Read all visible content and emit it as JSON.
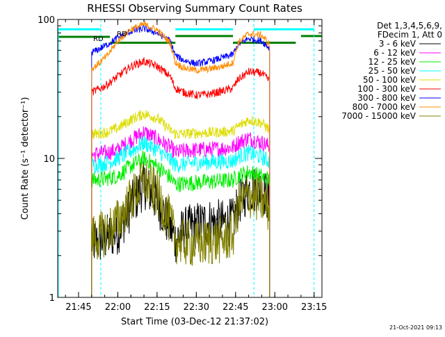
{
  "chart_data": {
    "type": "line",
    "title": "RHESSI Observing Summary Count Rates",
    "xlabel": "Start Time (03-Dec-12 21:37:02)",
    "ylabel": "Count Rate (s⁻¹ detector⁻¹)",
    "yscale": "log",
    "ylim": [
      1,
      100
    ],
    "xlim": [
      "21:37:02",
      "23:18:00"
    ],
    "x_ticks": [
      "21:45",
      "22:00",
      "22:15",
      "22:30",
      "22:45",
      "23:00",
      "23:15"
    ],
    "y_ticks": [
      "1",
      "10",
      "100"
    ],
    "legend_placement": "top-right",
    "legend_header": [
      "Det 1,3,4,5,6,9,",
      "FDecim 1, Att 0"
    ],
    "timestamp": "21-Oct-2021 09:13",
    "annotations": [
      "RD",
      "RD"
    ],
    "series": [
      {
        "name": "3 - 6 keV",
        "color": "#000000",
        "x": [
          "21:50:00",
          "21:52:00",
          "21:56:00",
          "22:00:00",
          "22:05:00",
          "22:10:00",
          "22:15:00",
          "22:20:00",
          "22:22:00",
          "22:25:00",
          "22:30:00",
          "22:35:00",
          "22:40:00",
          "22:44:00",
          "22:46:00",
          "22:50:00",
          "22:55:00",
          "22:58:00"
        ],
        "y": [
          2.5,
          2.5,
          2.7,
          3.0,
          4.5,
          6.5,
          5.0,
          3.2,
          2.6,
          3.0,
          3.3,
          3.5,
          3.4,
          3.5,
          4.8,
          6.0,
          6.0,
          5.0
        ]
      },
      {
        "name": "6 - 12 keV",
        "color": "#ff00ff",
        "x": [
          "21:50:00",
          "21:52:00",
          "21:56:00",
          "22:00:00",
          "22:05:00",
          "22:10:00",
          "22:15:00",
          "22:20:00",
          "22:22:00",
          "22:25:00",
          "22:30:00",
          "22:35:00",
          "22:40:00",
          "22:44:00",
          "22:46:00",
          "22:50:00",
          "22:55:00",
          "22:58:00"
        ],
        "y": [
          10.5,
          10.8,
          11.0,
          11.5,
          13.5,
          15.5,
          13.8,
          12.0,
          11.0,
          11.3,
          11.5,
          11.6,
          11.8,
          12.0,
          13.0,
          14.0,
          13.0,
          12.2
        ]
      },
      {
        "name": "12 - 25 keV",
        "color": "#00ee00",
        "x": [
          "21:50:00",
          "21:52:00",
          "21:56:00",
          "22:00:00",
          "22:05:00",
          "22:10:00",
          "22:15:00",
          "22:20:00",
          "22:22:00",
          "22:25:00",
          "22:30:00",
          "22:35:00",
          "22:40:00",
          "22:44:00",
          "22:46:00",
          "22:50:00",
          "22:55:00",
          "22:58:00"
        ],
        "y": [
          7.0,
          7.0,
          7.2,
          7.5,
          8.8,
          10.0,
          8.8,
          7.3,
          6.5,
          6.6,
          6.7,
          6.8,
          6.9,
          7.0,
          7.5,
          8.0,
          7.4,
          7.0
        ]
      },
      {
        "name": "25 - 50 keV",
        "color": "#00ffff",
        "x": [
          "21:50:00",
          "21:52:00",
          "21:56:00",
          "22:00:00",
          "22:05:00",
          "22:10:00",
          "22:15:00",
          "22:20:00",
          "22:22:00",
          "22:25:00",
          "22:30:00",
          "22:35:00",
          "22:40:00",
          "22:44:00",
          "22:46:00",
          "22:50:00",
          "22:55:00",
          "22:58:00"
        ],
        "y": [
          9.0,
          9.0,
          9.3,
          10.0,
          11.3,
          13.0,
          11.5,
          9.8,
          9.0,
          9.1,
          9.3,
          9.4,
          9.5,
          9.6,
          10.3,
          11.0,
          10.2,
          9.5
        ]
      },
      {
        "name": "50 - 100 keV",
        "color": "#dddd00",
        "x": [
          "21:50:00",
          "21:52:00",
          "21:56:00",
          "22:00:00",
          "22:05:00",
          "22:10:00",
          "22:15:00",
          "22:20:00",
          "22:22:00",
          "22:25:00",
          "22:30:00",
          "22:35:00",
          "22:40:00",
          "22:44:00",
          "22:46:00",
          "22:50:00",
          "22:55:00",
          "22:58:00"
        ],
        "y": [
          15.0,
          15.0,
          15.5,
          16.5,
          19.0,
          21.0,
          19.5,
          16.0,
          15.0,
          15.0,
          15.2,
          15.3,
          15.5,
          15.8,
          17.0,
          19.0,
          18.0,
          16.0
        ]
      },
      {
        "name": "100 - 300 keV",
        "color": "#ff0000",
        "x": [
          "21:50:00",
          "21:52:00",
          "21:56:00",
          "22:00:00",
          "22:05:00",
          "22:10:00",
          "22:15:00",
          "22:20:00",
          "22:22:00",
          "22:25:00",
          "22:30:00",
          "22:35:00",
          "22:40:00",
          "22:44:00",
          "22:46:00",
          "22:50:00",
          "22:55:00",
          "22:58:00"
        ],
        "y": [
          30.0,
          31.0,
          34.0,
          39.0,
          46.0,
          50.0,
          46.0,
          39.0,
          32.0,
          30.0,
          28.5,
          29.0,
          30.5,
          32.0,
          37.0,
          42.0,
          41.0,
          36.0
        ]
      },
      {
        "name": "300 - 800 keV",
        "color": "#0000ff",
        "x": [
          "21:50:00",
          "21:52:00",
          "21:56:00",
          "22:00:00",
          "22:05:00",
          "22:10:00",
          "22:15:00",
          "22:20:00",
          "22:22:00",
          "22:25:00",
          "22:30:00",
          "22:35:00",
          "22:40:00",
          "22:44:00",
          "22:46:00",
          "22:50:00",
          "22:55:00",
          "22:58:00"
        ],
        "y": [
          58.0,
          60.0,
          66.0,
          74.0,
          82.0,
          86.0,
          80.0,
          70.0,
          55.0,
          51.0,
          48.0,
          50.0,
          53.0,
          56.0,
          66.0,
          73.0,
          70.0,
          62.0
        ]
      },
      {
        "name": "800 - 7000 keV",
        "color": "#ff8c00",
        "x": [
          "21:50:00",
          "21:52:00",
          "21:56:00",
          "22:00:00",
          "22:05:00",
          "22:10:00",
          "22:15:00",
          "22:20:00",
          "22:22:00",
          "22:25:00",
          "22:30:00",
          "22:35:00",
          "22:40:00",
          "22:44:00",
          "22:46:00",
          "22:50:00",
          "22:55:00",
          "22:58:00"
        ],
        "y": [
          44.0,
          47.0,
          55.0,
          70.0,
          85.0,
          92.0,
          84.0,
          68.0,
          49.0,
          45.0,
          43.0,
          44.0,
          46.0,
          49.0,
          68.0,
          79.0,
          77.0,
          66.0
        ]
      },
      {
        "name": "7000 - 15000 keV",
        "color": "#808000",
        "x": [
          "21:50:00",
          "21:52:00",
          "21:56:00",
          "22:00:00",
          "22:05:00",
          "22:10:00",
          "22:15:00",
          "22:20:00",
          "22:22:00",
          "22:25:00",
          "22:30:00",
          "22:35:00",
          "22:40:00",
          "22:44:00",
          "22:46:00",
          "22:50:00",
          "22:55:00",
          "22:58:00"
        ],
        "y": [
          2.7,
          2.7,
          3.0,
          3.5,
          5.0,
          7.0,
          5.5,
          3.5,
          2.6,
          2.5,
          2.4,
          2.5,
          2.6,
          2.8,
          4.5,
          5.5,
          5.0,
          4.2
        ]
      }
    ],
    "flag_lines": [
      {
        "name": "flag-cyan",
        "color": "#00ffff",
        "segments": [
          {
            "x": [
              "21:37:02",
              "21:53:30"
            ],
            "y": 85
          },
          {
            "x": [
              "22:22:00",
              "22:44:00"
            ],
            "y": 85
          },
          {
            "x": [
              "22:52:00",
              "23:15:00"
            ],
            "y": 85
          }
        ]
      },
      {
        "name": "flag-green",
        "color": "#008000",
        "segments": [
          {
            "x": [
              "21:37:02",
              "21:57:00"
            ],
            "y": 75
          },
          {
            "x": [
              "21:57:00",
              "22:22:00"
            ],
            "y": 68
          },
          {
            "x": [
              "22:22:00",
              "22:44:00"
            ],
            "y": 76
          },
          {
            "x": [
              "22:44:00",
              "23:08:00"
            ],
            "y": 68
          },
          {
            "x": [
              "23:10:00",
              "23:18:00"
            ],
            "y": 76
          }
        ]
      }
    ]
  }
}
